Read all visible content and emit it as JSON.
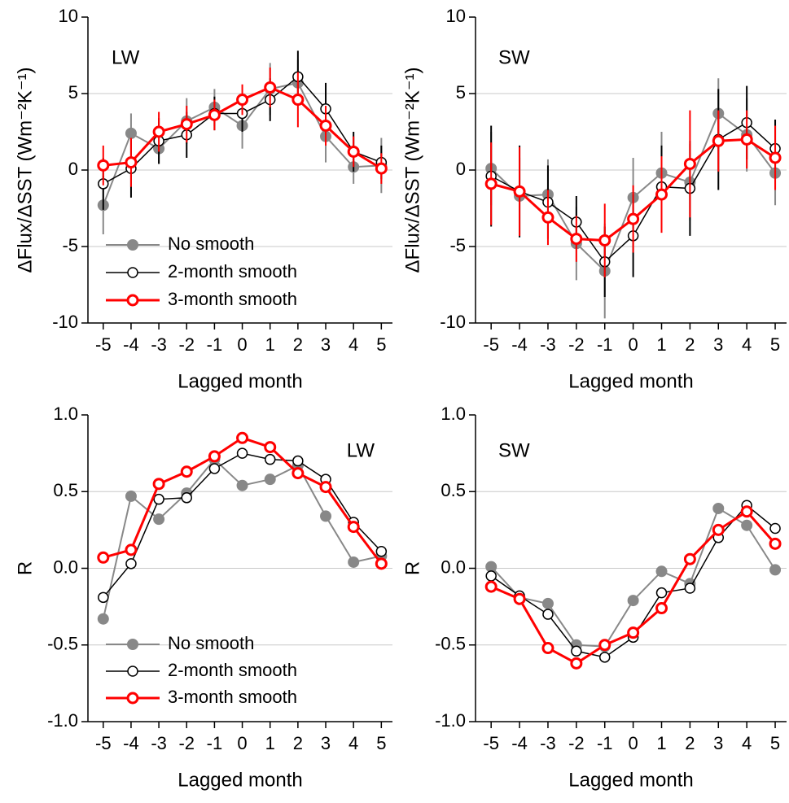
{
  "chart_data": [
    {
      "type": "line",
      "annotation": "LW",
      "xlabel": "Lagged month",
      "ylabel": "ΔFlux/ΔSST (Wm⁻²K⁻¹)",
      "x": [
        -5,
        -4,
        -3,
        -2,
        -1,
        0,
        1,
        2,
        3,
        4,
        5
      ],
      "xlim": [
        -5.55,
        5.4
      ],
      "xticks": [
        -5,
        -4,
        -3,
        -2,
        -1,
        0,
        1,
        2,
        3,
        4,
        5
      ],
      "ylim": [
        -10,
        10
      ],
      "yticks": [
        -10,
        -5,
        0,
        5,
        10
      ],
      "grid": true,
      "legend": "lower left",
      "series": [
        {
          "name": "No smooth",
          "color": "#888888",
          "marker": "filled",
          "line_width": 2,
          "values": [
            -2.3,
            2.4,
            1.4,
            3.2,
            4.1,
            2.9,
            5.3,
            5.7,
            2.2,
            0.2,
            0.3
          ],
          "error": [
            1.9,
            1.3,
            1.0,
            1.5,
            1.2,
            1.5,
            1.7,
            1.5,
            1.7,
            1.1,
            1.8
          ]
        },
        {
          "name": "2-month smooth",
          "color": "#000000",
          "marker": "open",
          "line_width": 1.5,
          "values": [
            -0.9,
            0.1,
            1.9,
            2.3,
            3.7,
            3.7,
            4.6,
            6.1,
            4.0,
            1.2,
            0.5
          ],
          "error": [
            1.7,
            1.9,
            1.5,
            1.5,
            1.1,
            1.2,
            1.4,
            1.7,
            1.7,
            1.3,
            1.1
          ]
        },
        {
          "name": "3-month smooth",
          "color": "#ff0000",
          "marker": "open",
          "line_width": 3,
          "values": [
            0.3,
            0.5,
            2.5,
            3.0,
            3.6,
            4.6,
            5.4,
            4.6,
            2.9,
            1.2,
            0.1
          ],
          "error": [
            1.3,
            1.6,
            1.3,
            1.2,
            1.0,
            1.0,
            1.3,
            1.8,
            1.3,
            1.0,
            1.0
          ]
        }
      ]
    },
    {
      "type": "line",
      "annotation": "SW",
      "xlabel": "Lagged month",
      "ylabel": "ΔFlux/ΔSST (Wm⁻²K⁻¹)",
      "x": [
        -5,
        -4,
        -3,
        -2,
        -1,
        0,
        1,
        2,
        3,
        4,
        5
      ],
      "xlim": [
        -5.55,
        5.4
      ],
      "xticks": [
        -5,
        -4,
        -3,
        -2,
        -1,
        0,
        1,
        2,
        3,
        4,
        5
      ],
      "ylim": [
        -10,
        10
      ],
      "yticks": [
        -10,
        -5,
        0,
        5,
        10
      ],
      "grid": true,
      "series": [
        {
          "color": "#888888",
          "marker": "filled",
          "line_width": 2,
          "values": [
            0.1,
            -1.7,
            -1.6,
            -4.8,
            -6.6,
            -1.8,
            -0.2,
            -0.8,
            3.7,
            2.3,
            -0.2
          ],
          "error": [
            2.4,
            2.5,
            2.3,
            2.4,
            3.1,
            2.6,
            2.7,
            2.5,
            2.3,
            2.4,
            2.1
          ]
        },
        {
          "color": "#000000",
          "marker": "open",
          "line_width": 1.5,
          "values": [
            -0.4,
            -1.4,
            -2.1,
            -3.4,
            -6.0,
            -4.3,
            -1.1,
            -1.2,
            2.0,
            3.1,
            1.4
          ],
          "error": [
            3.3,
            3.0,
            2.4,
            1.7,
            2.3,
            2.7,
            2.7,
            3.1,
            3.3,
            2.4,
            1.9
          ]
        },
        {
          "color": "#ff0000",
          "marker": "open",
          "line_width": 3,
          "values": [
            -0.9,
            -1.4,
            -3.1,
            -4.5,
            -4.6,
            -3.2,
            -1.6,
            0.4,
            1.9,
            2.0,
            0.8
          ],
          "error": [
            2.7,
            2.9,
            1.8,
            1.5,
            2.4,
            2.2,
            2.5,
            3.5,
            2.0,
            1.9,
            2.1
          ]
        }
      ]
    },
    {
      "type": "line",
      "annotation": "LW",
      "xlabel": "Lagged month",
      "ylabel": "R",
      "x": [
        -5,
        -4,
        -3,
        -2,
        -1,
        0,
        1,
        2,
        3,
        4,
        5
      ],
      "xlim": [
        -5.55,
        5.4
      ],
      "xticks": [
        -5,
        -4,
        -3,
        -2,
        -1,
        0,
        1,
        2,
        3,
        4,
        5
      ],
      "ylim": [
        -1,
        1
      ],
      "yticks": [
        {
          "value": -1,
          "label": "-1.0"
        },
        -0.5,
        {
          "value": 0,
          "label": "0.0"
        },
        0.5,
        {
          "value": 1,
          "label": "1.0"
        }
      ],
      "grid": true,
      "legend": "lower left",
      "series": [
        {
          "name": "No smooth",
          "color": "#888888",
          "marker": "filled",
          "line_width": 2,
          "values": [
            -0.33,
            0.47,
            0.32,
            0.49,
            0.71,
            0.54,
            0.58,
            0.67,
            0.34,
            0.04,
            0.08
          ]
        },
        {
          "name": "2-month smooth",
          "color": "#000000",
          "marker": "open",
          "line_width": 1.5,
          "values": [
            -0.19,
            0.03,
            0.45,
            0.46,
            0.65,
            0.75,
            0.71,
            0.7,
            0.58,
            0.3,
            0.11
          ]
        },
        {
          "name": "3-month smooth",
          "color": "#ff0000",
          "marker": "open",
          "line_width": 3,
          "values": [
            0.07,
            0.12,
            0.55,
            0.63,
            0.73,
            0.85,
            0.79,
            0.62,
            0.53,
            0.27,
            0.03
          ]
        }
      ]
    },
    {
      "type": "line",
      "annotation": "SW",
      "xlabel": "Lagged month",
      "ylabel": "R",
      "x": [
        -5,
        -4,
        -3,
        -2,
        -1,
        0,
        1,
        2,
        3,
        4,
        5
      ],
      "xlim": [
        -5.55,
        5.4
      ],
      "xticks": [
        -5,
        -4,
        -3,
        -2,
        -1,
        0,
        1,
        2,
        3,
        4,
        5
      ],
      "ylim": [
        -1,
        1
      ],
      "yticks": [
        {
          "value": -1,
          "label": "-1.0"
        },
        -0.5,
        {
          "value": 0,
          "label": "0.0"
        },
        0.5,
        {
          "value": 1,
          "label": "1.0"
        }
      ],
      "grid": true,
      "series": [
        {
          "color": "#888888",
          "marker": "filled",
          "line_width": 2,
          "values": [
            0.01,
            -0.19,
            -0.23,
            -0.5,
            -0.51,
            -0.21,
            -0.02,
            -0.1,
            0.39,
            0.28,
            -0.01
          ]
        },
        {
          "color": "#000000",
          "marker": "open",
          "line_width": 1.5,
          "values": [
            -0.05,
            -0.18,
            -0.3,
            -0.54,
            -0.58,
            -0.45,
            -0.16,
            -0.13,
            0.2,
            0.41,
            0.26
          ]
        },
        {
          "color": "#ff0000",
          "marker": "open",
          "line_width": 3,
          "values": [
            -0.12,
            -0.2,
            -0.52,
            -0.62,
            -0.5,
            -0.42,
            -0.26,
            0.06,
            0.25,
            0.37,
            0.16
          ]
        }
      ]
    }
  ]
}
